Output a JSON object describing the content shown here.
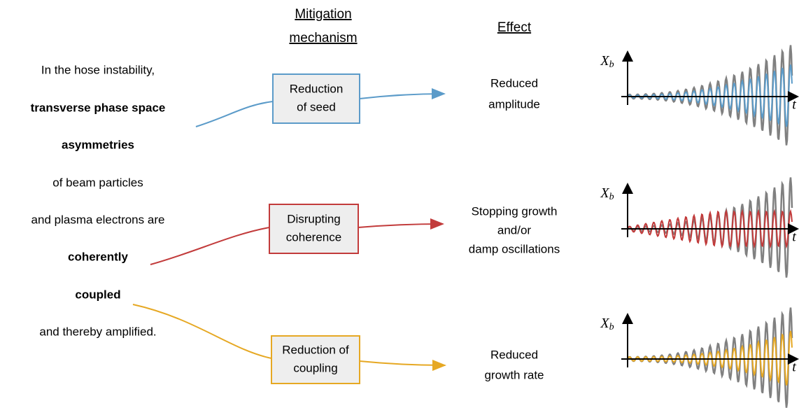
{
  "headers": {
    "mechanism": [
      "Mitigation",
      "mechanism"
    ],
    "effect": "Effect"
  },
  "left_text": [
    {
      "text": "In the hose instability,",
      "color": "#000000"
    },
    {
      "text": "transverse phase space",
      "color": "#5b9bc9"
    },
    {
      "text": "asymmetries",
      "color": "#5b9bc9"
    },
    {
      "text": "of beam particles",
      "color": "#000000"
    },
    {
      "text": "and plasma electrons are",
      "color": "#000000"
    },
    {
      "text": "coherently",
      "color": "#c23b3b"
    },
    {
      "text": "coupled",
      "color": "#e6a823"
    },
    {
      "text": "and thereby amplified.",
      "color": "#000000"
    }
  ],
  "rows": [
    {
      "mechanism": [
        "Reduction",
        "of seed"
      ],
      "effect": [
        "Reduced",
        "amplitude"
      ],
      "color": "#5b9bc9"
    },
    {
      "mechanism": [
        "Disrupting",
        "coherence"
      ],
      "effect": [
        "Stopping growth",
        "and/or",
        "damp oscillations"
      ],
      "color": "#c23b3b"
    },
    {
      "mechanism": [
        "Reduction of",
        "coupling"
      ],
      "effect": [
        "Reduced",
        "growth rate"
      ],
      "color": "#e6a823"
    }
  ],
  "plots": [
    {
      "y_label": {
        "symbol": "X",
        "subscript": "b"
      },
      "x_label": "t"
    },
    {
      "y_label": {
        "symbol": "X",
        "subscript": "b"
      },
      "x_label": "t"
    },
    {
      "y_label": {
        "symbol": "X",
        "subscript": "b"
      },
      "x_label": "t"
    }
  ]
}
